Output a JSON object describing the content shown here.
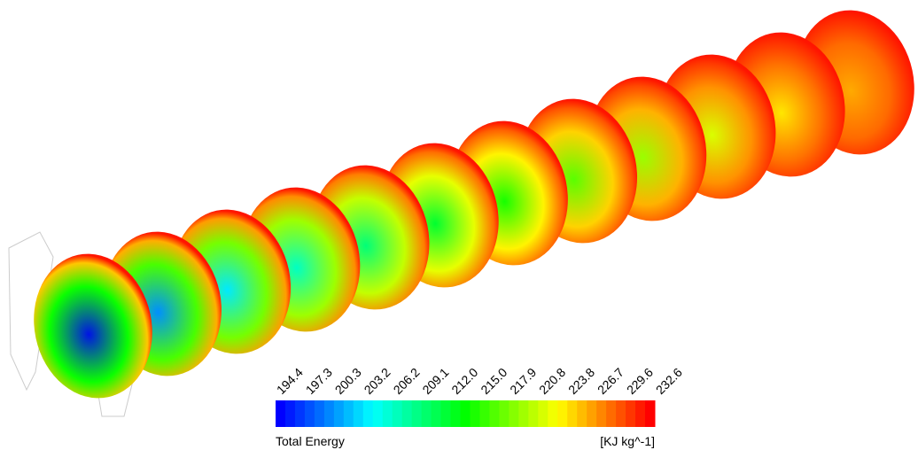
{
  "legend": {
    "title": "Total Energy",
    "unit": "[KJ kg^-1]",
    "ticks": [
      "194.4",
      "197.3",
      "200.3",
      "203.2",
      "206.2",
      "209.1",
      "212.0",
      "215.0",
      "217.9",
      "220.8",
      "223.8",
      "226.7",
      "229.6",
      "232.6"
    ]
  }
}
